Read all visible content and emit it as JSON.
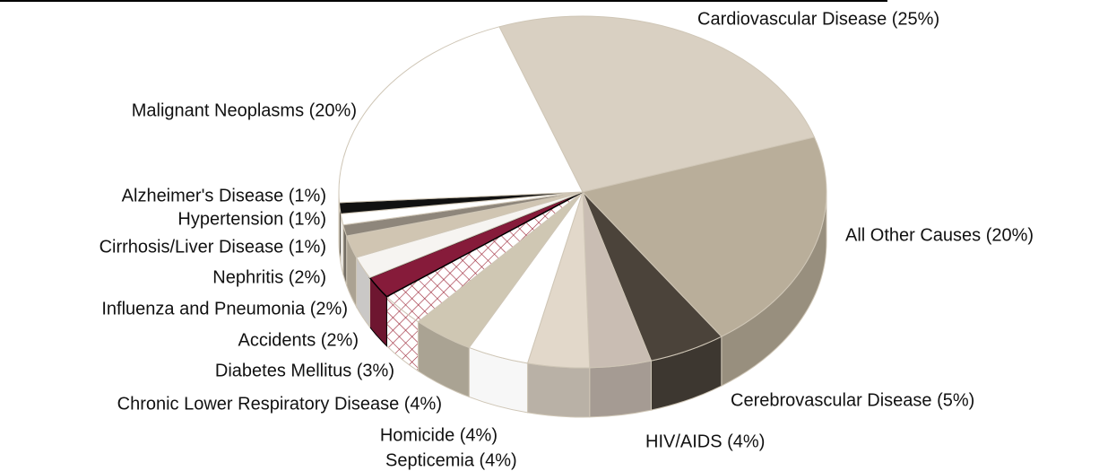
{
  "chart_data": {
    "type": "pie3d",
    "categories": [
      "Cardiovascular Disease (25%)",
      "All Other Causes (20%)",
      "Cerebrovascular Disease (5%)",
      "HIV/AIDS (4%)",
      "Septicemia (4%)",
      "Homicide (4%)",
      "Chronic Lower Respiratory Disease (4%)",
      "Diabetes Mellitus (3%)",
      "Accidents (2%)",
      "Influenza and Pneumonia (2%)",
      "Nephritis  (2%)",
      "Cirrhosis/Liver Disease (1%)",
      "Hypertension  (1%)",
      "Alzheimer's Disease (1%)",
      "Malignant Neoplasms (20%)"
    ],
    "values": [
      25,
      20,
      5,
      4,
      4,
      4,
      4,
      3,
      2,
      2,
      2,
      1,
      1,
      1,
      20
    ],
    "colors": [
      "#d9d0c2",
      "#b9ae9a",
      "#4b433a",
      "#c9bdb3",
      "#e2d8ca",
      "#ffffff",
      "#cfc7b3",
      "#ffffff",
      "#861b3a",
      "#f6f4f1",
      "#d0c5b2",
      "#8e867b",
      "#ffffff",
      "#111111",
      "#ffffff"
    ],
    "hatched": [
      7
    ]
  }
}
